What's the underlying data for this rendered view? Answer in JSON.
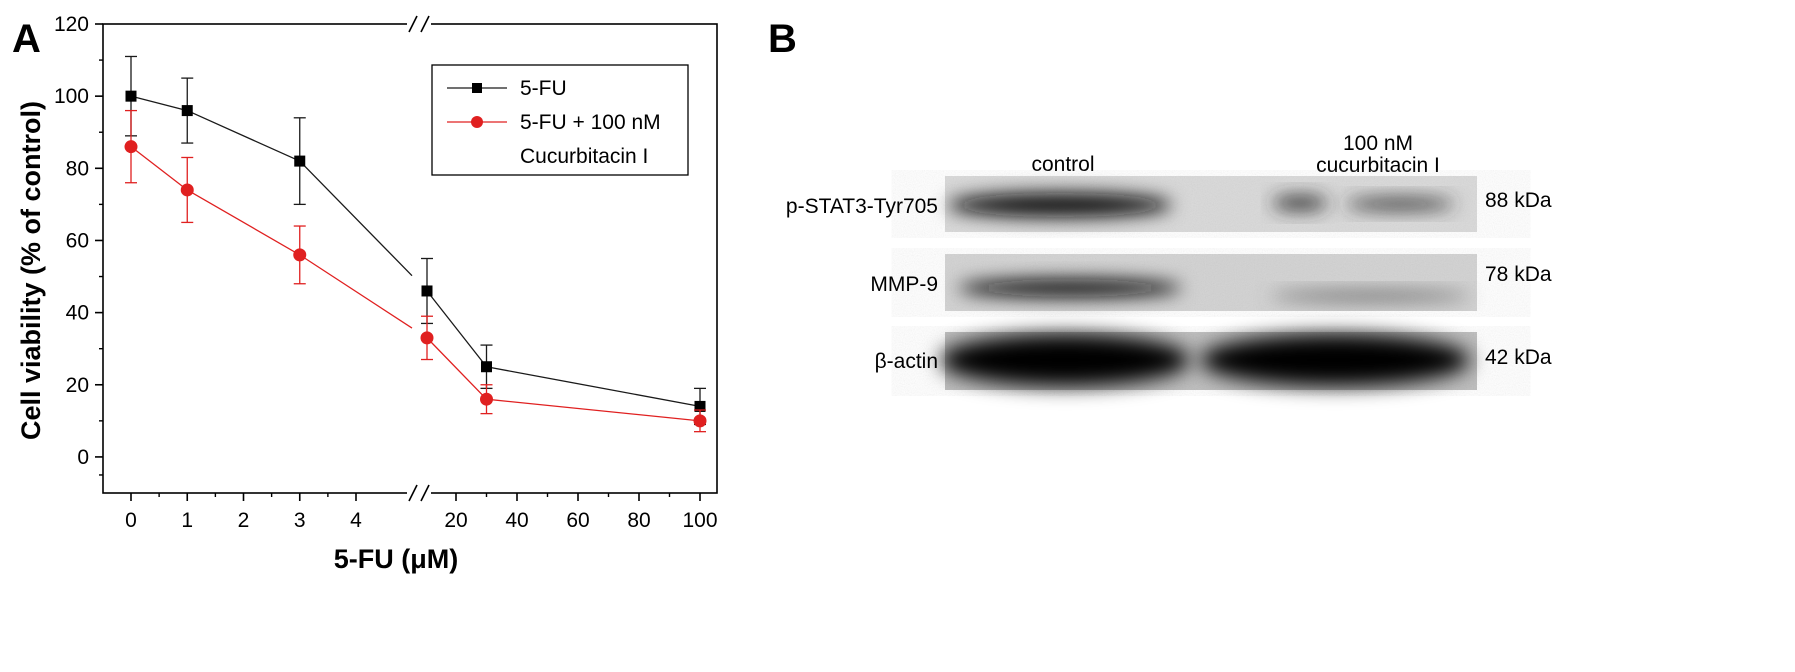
{
  "panels": {
    "a": "A",
    "b": "B"
  },
  "colors": {
    "series_5fu": "#1a1a1a",
    "series_combo": "#e02020"
  },
  "chart_data": {
    "type": "line",
    "panel": "A",
    "xlabel": "5-FU (μM)",
    "ylabel": "Cell viability (% of control)",
    "ylim": [
      -10,
      120
    ],
    "yticks": [
      "0",
      "20",
      "40",
      "60",
      "80",
      "100",
      "120"
    ],
    "x": [
      0,
      1,
      3,
      15,
      30,
      100
    ],
    "x_tick_labels_left": [
      "0",
      "1",
      "2",
      "3",
      "4"
    ],
    "x_tick_labels_right": [
      "20",
      "40",
      "60",
      "80",
      "100"
    ],
    "x_axis_break": true,
    "grid": false,
    "legend_position": "top-right",
    "series": [
      {
        "name": "5-FU",
        "marker": "square",
        "values": [
          100,
          96,
          82,
          46,
          25,
          14
        ],
        "errors": [
          11,
          9,
          12,
          9,
          6,
          5
        ]
      },
      {
        "name": "5-FU + 100 nM",
        "name_line2": "Cucurbitacin I",
        "marker": "circle",
        "values": [
          86,
          74,
          56,
          33,
          16,
          10
        ],
        "errors": [
          10,
          9,
          8,
          6,
          4,
          3
        ]
      }
    ]
  },
  "western_blot": {
    "panel": "B",
    "lanes": [
      {
        "label": "control"
      },
      {
        "label": "100 nM",
        "label_line2": "cucurbitacin I"
      }
    ],
    "rows": [
      {
        "protein": "p-STAT3-Tyr705",
        "size": "88 kDa"
      },
      {
        "protein": "MMP-9",
        "size": "78 kDa"
      },
      {
        "protein": "β-actin",
        "size": "42 kDa"
      }
    ]
  }
}
